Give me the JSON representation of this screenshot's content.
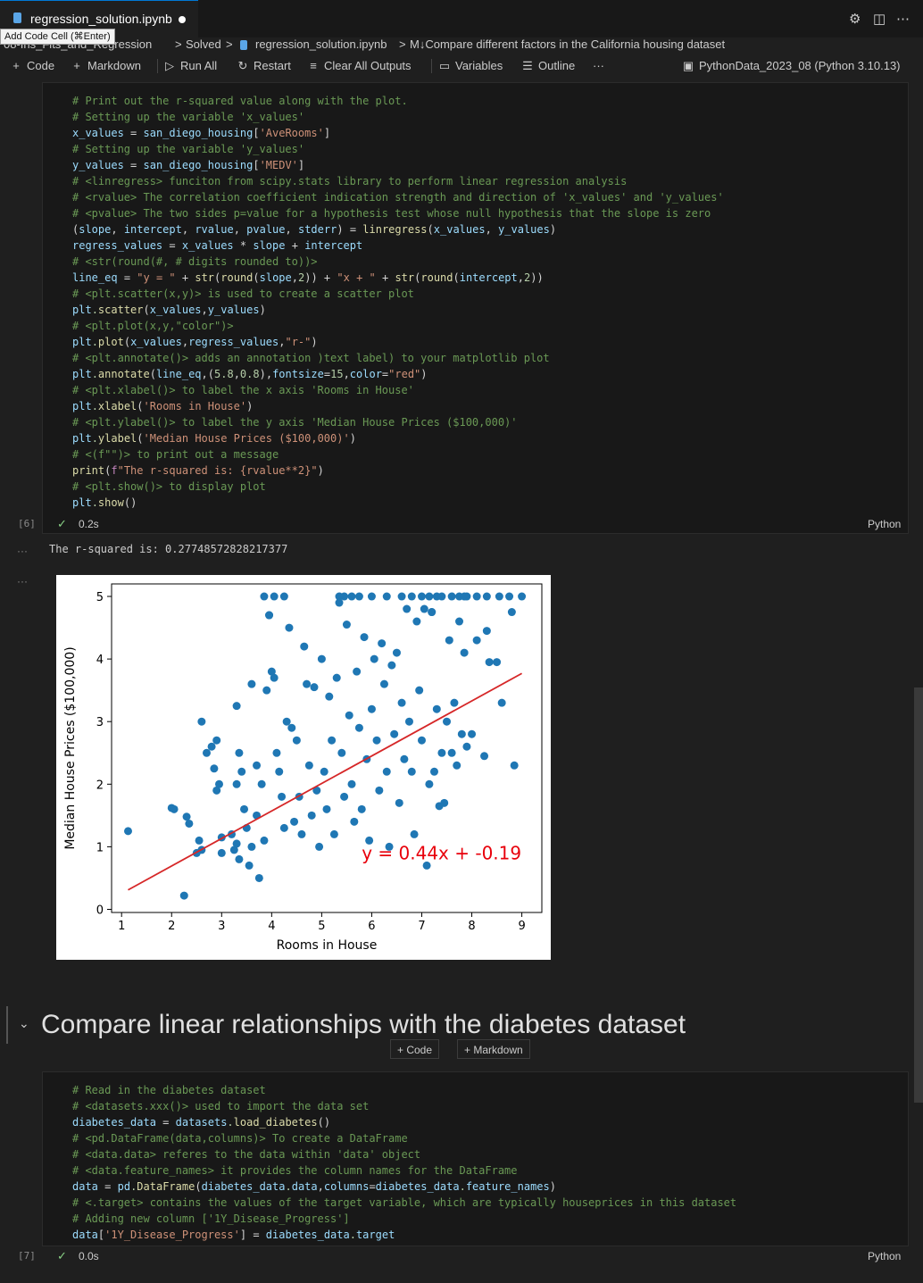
{
  "tab": {
    "filename": "regression_solution.ipynb",
    "tooltip": "Add Code Cell (⌘Enter)"
  },
  "breadcrumb": {
    "items": [
      "08-Ins_Fits_and_Regression",
      ">",
      "Solved",
      ">",
      "regression_solution.ipynb",
      ">",
      "M↓Compare different factors in the California housing dataset"
    ]
  },
  "toolbar": {
    "code": "Code",
    "markdown": "Markdown",
    "run_all": "Run All",
    "restart": "Restart",
    "clear_outputs": "Clear All Outputs",
    "variables": "Variables",
    "outline": "Outline",
    "more": "···",
    "kernel": "PythonData_2023_08 (Python 3.10.13)"
  },
  "cell6": {
    "exec_count": "[6]",
    "duration": "0.2s",
    "language": "Python",
    "lines": [
      "# Print out the r-squared value along with the plot.",
      "# Setting up the variable 'x_values'",
      "x_values = san_diego_housing['AveRooms']",
      "# Setting up the variable 'y_values'",
      "y_values = san_diego_housing['MEDV']",
      "# <linregress> funciton from scipy.stats library to perform linear regression analysis",
      "# <rvalue> The correlation coefficient indication strength and direction of 'x_values' and 'y_values'",
      "# <pvalue> The two sides p=value for a hypothesis test whose null hypothesis that the slope is zero",
      "(slope, intercept, rvalue, pvalue, stderr) = linregress(x_values, y_values)",
      "regress_values = x_values * slope + intercept",
      "# <str(round(#, # digits rounded to))>",
      "line_eq = \"y = \" + str(round(slope,2)) + \"x + \" + str(round(intercept,2))",
      "# <plt.scatter(x,y)> is used to create a scatter plot",
      "plt.scatter(x_values,y_values)",
      "# <plt.plot(x,y,\"color\")>",
      "plt.plot(x_values,regress_values,\"r-\")",
      "# <plt.annotate()> adds an annotation )text label) to your matplotlib plot",
      "plt.annotate(line_eq,(5.8,0.8),fontsize=15,color=\"red\")",
      "# <plt.xlabel()> to label the x axis 'Rooms in House'",
      "plt.xlabel('Rooms in House')",
      "# <plt.ylabel()> to label the y axis 'Median House Prices ($100,000)'",
      "plt.ylabel('Median House Prices ($100,000)')",
      "# <(f\"\")> to print out a message",
      "print(f\"The r-squared is: {rvalue**2}\")",
      "# <plt.show()> to display plot",
      "plt.show()"
    ],
    "output_text": "The r-squared is: 0.27748572828217377"
  },
  "chart_data": {
    "type": "scatter",
    "title": "",
    "xlabel": "Rooms in House",
    "ylabel": "Median House Prices ($100,000)",
    "xlim": [
      0.8,
      9.4
    ],
    "ylim": [
      -0.05,
      5.2
    ],
    "xticks": [
      "1",
      "2",
      "3",
      "4",
      "5",
      "6",
      "7",
      "8",
      "9"
    ],
    "yticks": [
      "0",
      "1",
      "2",
      "3",
      "4",
      "5"
    ],
    "point_color": "#1f77b4",
    "line_color": "#d62728",
    "regression_line": {
      "x": [
        1.13,
        9.0
      ],
      "y": [
        0.31,
        3.77
      ]
    },
    "annotation": "y = 0.44x + -0.19",
    "points": [
      [
        1.13,
        1.25
      ],
      [
        2.0,
        1.62
      ],
      [
        2.05,
        1.6
      ],
      [
        2.3,
        1.48
      ],
      [
        2.35,
        1.37
      ],
      [
        2.25,
        0.22
      ],
      [
        2.5,
        0.9
      ],
      [
        2.55,
        1.1
      ],
      [
        2.6,
        0.95
      ],
      [
        2.6,
        3.0
      ],
      [
        2.7,
        2.5
      ],
      [
        2.8,
        2.6
      ],
      [
        2.9,
        2.7
      ],
      [
        2.85,
        2.25
      ],
      [
        2.9,
        1.9
      ],
      [
        2.95,
        2.0
      ],
      [
        3.0,
        1.15
      ],
      [
        3.0,
        0.9
      ],
      [
        3.2,
        1.2
      ],
      [
        3.25,
        0.95
      ],
      [
        3.3,
        1.05
      ],
      [
        3.35,
        0.8
      ],
      [
        3.3,
        2.0
      ],
      [
        3.4,
        2.2
      ],
      [
        3.35,
        2.5
      ],
      [
        3.3,
        3.25
      ],
      [
        3.45,
        1.6
      ],
      [
        3.5,
        1.3
      ],
      [
        3.55,
        0.7
      ],
      [
        3.6,
        1.0
      ],
      [
        3.6,
        3.6
      ],
      [
        3.7,
        2.3
      ],
      [
        3.7,
        1.5
      ],
      [
        3.75,
        0.5
      ],
      [
        3.8,
        2.0
      ],
      [
        3.85,
        1.1
      ],
      [
        3.9,
        3.5
      ],
      [
        3.95,
        4.7
      ],
      [
        4.0,
        3.8
      ],
      [
        4.05,
        3.7
      ],
      [
        4.1,
        2.5
      ],
      [
        4.15,
        2.2
      ],
      [
        4.2,
        1.8
      ],
      [
        4.25,
        1.3
      ],
      [
        4.3,
        3.0
      ],
      [
        4.35,
        4.5
      ],
      [
        4.4,
        2.9
      ],
      [
        4.45,
        1.4
      ],
      [
        4.5,
        2.7
      ],
      [
        4.55,
        1.8
      ],
      [
        4.6,
        1.2
      ],
      [
        4.65,
        4.2
      ],
      [
        4.7,
        3.6
      ],
      [
        4.75,
        2.3
      ],
      [
        4.8,
        1.5
      ],
      [
        4.85,
        3.55
      ],
      [
        4.9,
        1.9
      ],
      [
        4.95,
        1.0
      ],
      [
        5.0,
        4.0
      ],
      [
        5.05,
        2.2
      ],
      [
        5.1,
        1.6
      ],
      [
        5.15,
        3.4
      ],
      [
        5.2,
        2.7
      ],
      [
        5.25,
        1.2
      ],
      [
        5.3,
        3.7
      ],
      [
        5.35,
        4.9
      ],
      [
        5.4,
        2.5
      ],
      [
        5.45,
        1.8
      ],
      [
        5.5,
        4.55
      ],
      [
        5.55,
        3.1
      ],
      [
        5.6,
        2.0
      ],
      [
        5.65,
        1.4
      ],
      [
        5.7,
        3.8
      ],
      [
        5.75,
        2.9
      ],
      [
        5.8,
        1.6
      ],
      [
        5.85,
        4.35
      ],
      [
        5.9,
        2.4
      ],
      [
        5.95,
        1.1
      ],
      [
        6.0,
        3.2
      ],
      [
        6.05,
        4.0
      ],
      [
        6.1,
        2.7
      ],
      [
        6.15,
        1.9
      ],
      [
        6.2,
        4.25
      ],
      [
        6.25,
        3.6
      ],
      [
        6.3,
        2.2
      ],
      [
        6.35,
        1.0
      ],
      [
        6.4,
        3.9
      ],
      [
        6.45,
        2.8
      ],
      [
        6.5,
        4.1
      ],
      [
        6.55,
        1.7
      ],
      [
        6.6,
        3.3
      ],
      [
        6.65,
        2.4
      ],
      [
        6.7,
        4.8
      ],
      [
        6.75,
        3.0
      ],
      [
        6.8,
        2.2
      ],
      [
        6.85,
        1.2
      ],
      [
        6.9,
        4.6
      ],
      [
        6.95,
        3.5
      ],
      [
        7.0,
        2.7
      ],
      [
        7.05,
        4.8
      ],
      [
        7.1,
        0.7
      ],
      [
        7.15,
        2.0
      ],
      [
        7.2,
        4.75
      ],
      [
        7.25,
        2.2
      ],
      [
        7.3,
        3.2
      ],
      [
        7.35,
        1.65
      ],
      [
        7.4,
        2.5
      ],
      [
        7.45,
        1.7
      ],
      [
        7.5,
        3.0
      ],
      [
        7.55,
        4.3
      ],
      [
        7.6,
        2.5
      ],
      [
        7.65,
        3.3
      ],
      [
        7.7,
        2.3
      ],
      [
        7.75,
        4.6
      ],
      [
        7.8,
        2.8
      ],
      [
        7.85,
        4.1
      ],
      [
        7.9,
        2.6
      ],
      [
        8.0,
        2.8
      ],
      [
        8.1,
        4.3
      ],
      [
        8.25,
        2.45
      ],
      [
        8.3,
        4.45
      ],
      [
        8.35,
        3.95
      ],
      [
        8.5,
        3.95
      ],
      [
        8.6,
        3.3
      ],
      [
        8.8,
        4.75
      ],
      [
        8.85,
        2.3
      ],
      [
        8.75,
        5.0
      ],
      [
        9.0,
        5.0
      ],
      [
        8.55,
        5.0
      ],
      [
        8.3,
        5.0
      ],
      [
        8.1,
        5.0
      ],
      [
        7.9,
        5.0
      ],
      [
        7.75,
        5.0
      ],
      [
        7.6,
        5.0
      ],
      [
        7.3,
        5.0
      ],
      [
        7.15,
        5.0
      ],
      [
        7.0,
        5.0
      ],
      [
        6.8,
        5.0
      ],
      [
        6.6,
        5.0
      ],
      [
        6.3,
        5.0
      ],
      [
        6.0,
        5.0
      ],
      [
        5.75,
        5.0
      ],
      [
        5.6,
        5.0
      ],
      [
        5.45,
        5.0
      ],
      [
        5.35,
        5.0
      ],
      [
        4.25,
        5.0
      ],
      [
        3.85,
        5.0
      ],
      [
        4.05,
        5.0
      ],
      [
        3.95,
        4.7
      ],
      [
        7.2,
        4.75
      ],
      [
        7.4,
        5.0
      ],
      [
        7.85,
        5.0
      ]
    ]
  },
  "section": {
    "heading": "Compare linear relationships with the diabetes dataset",
    "add_code": "Code",
    "add_markdown": "Markdown"
  },
  "cell7": {
    "exec_count": "[7]",
    "duration": "0.0s",
    "language": "Python",
    "lines": [
      "# Read in the diabetes dataset",
      "# <datasets.xxx()> used to import the data set",
      "diabetes_data = datasets.load_diabetes()",
      "# <pd.DataFrame(data,columns)> To create a DataFrame",
      "# <data.data> referes to the data within 'data' object",
      "# <data.feature_names> it provides the column names for the DataFrame",
      "data = pd.DataFrame(diabetes_data.data,columns=diabetes_data.feature_names)",
      "# <.target> contains the values of the target variable, which are typically houseprices in this dataset",
      "# Adding new column ['1Y_Disease_Progress']",
      "data['1Y_Disease_Progress'] = diabetes_data.target"
    ]
  }
}
